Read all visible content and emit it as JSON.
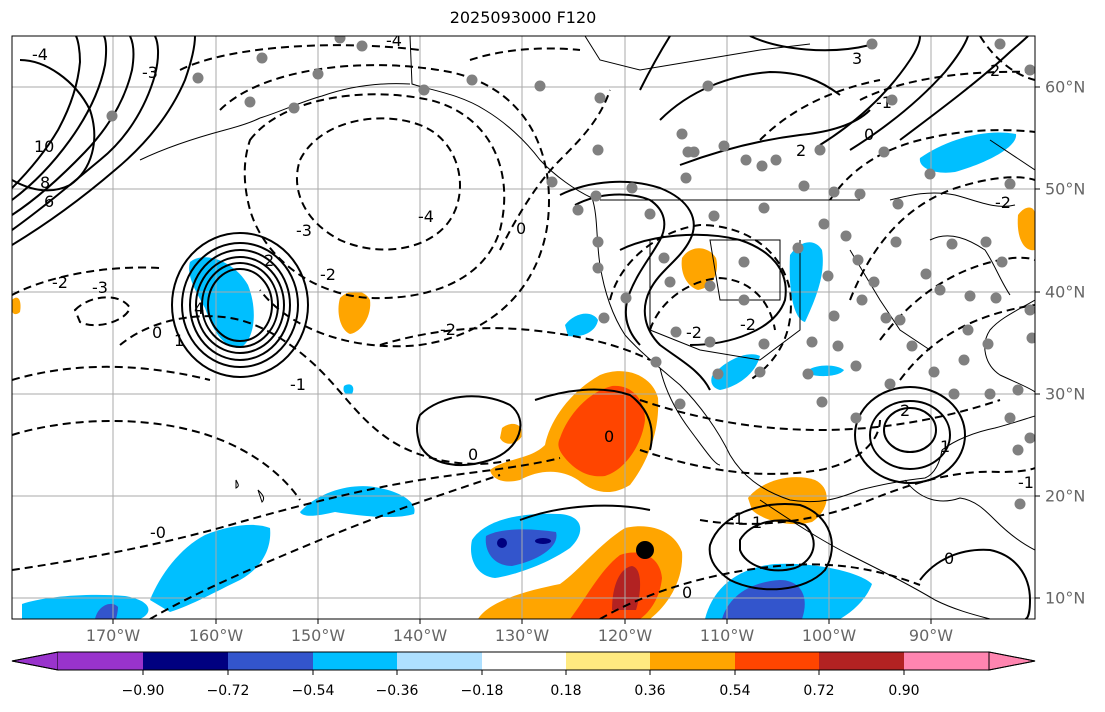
{
  "title": "2025093000 F120",
  "lon_labels": [
    "170°W",
    "160°W",
    "150°W",
    "140°W",
    "130°W",
    "120°W",
    "110°W",
    "100°W",
    "90°W"
  ],
  "lat_labels": [
    "60°N",
    "50°N",
    "40°N",
    "30°N",
    "20°N",
    "10°N"
  ],
  "contour_labels": [
    "-4",
    "-3",
    "-2",
    "-2",
    "-2",
    "-2",
    "-4",
    "-4",
    "-3",
    "-3",
    "-2",
    "0",
    "0",
    "0",
    "0",
    "0",
    "0",
    "-0",
    "-1",
    "-1",
    "-1",
    "-2",
    "1",
    "1",
    "1",
    "2",
    "2",
    "2",
    "2",
    "3",
    "4",
    "6",
    "8",
    "10",
    "-1",
    "0"
  ],
  "colorbar": {
    "ticks": [
      "−0.90",
      "−0.72",
      "−0.54",
      "−0.36",
      "−0.18",
      "0.18",
      "0.36",
      "0.54",
      "0.72",
      "0.90"
    ],
    "colors": [
      "#9933cc",
      "#000080",
      "#3355cc",
      "#00bfff",
      "#aee0ff",
      "#ffffff",
      "#ffea80",
      "#ffa500",
      "#ff4500",
      "#b22222",
      "#ff85b0"
    ]
  },
  "colors": {
    "frame": "#000000",
    "grid": "#aaaaaa",
    "station": "#808080"
  }
}
